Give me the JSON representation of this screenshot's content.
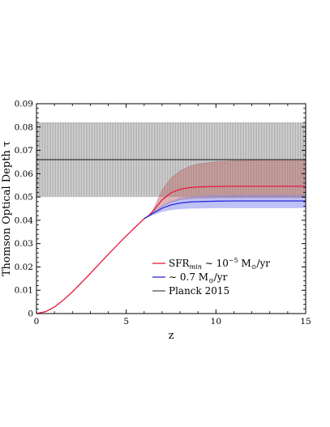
{
  "chart_data": {
    "type": "line",
    "xlabel": "z",
    "ylabel": "Thomson Optical Depth τ",
    "xlim": [
      0,
      15
    ],
    "ylim": [
      0,
      0.09
    ],
    "xticks": [
      "0",
      "5",
      "10",
      "15"
    ],
    "yticks": [
      "0",
      "0.01",
      "0.02",
      "0.03",
      "0.04",
      "0.05",
      "0.06",
      "0.07",
      "0.08",
      "0.09"
    ],
    "grid": false,
    "legend_position": "bottom-right",
    "series": [
      {
        "name": "SFR_min ~ 10^-5 M⊙/yr",
        "color": "#e8193c",
        "x": [
          0,
          0.5,
          1,
          1.5,
          2,
          2.5,
          3,
          3.5,
          4,
          4.5,
          5,
          5.5,
          6,
          6.25,
          6.5,
          7,
          7.5,
          8,
          8.5,
          9,
          10,
          11,
          12,
          13,
          14,
          15
        ],
        "y": [
          0,
          0.0008,
          0.0028,
          0.0058,
          0.0093,
          0.0132,
          0.0172,
          0.0213,
          0.0254,
          0.0294,
          0.0333,
          0.037,
          0.0407,
          0.042,
          0.044,
          0.0488,
          0.0518,
          0.0533,
          0.054,
          0.0543,
          0.0545,
          0.0546,
          0.0546,
          0.0546,
          0.0546,
          0.0546
        ],
        "band_upper": [
          0,
          0.0008,
          0.0028,
          0.0058,
          0.0093,
          0.0132,
          0.0172,
          0.0213,
          0.0254,
          0.0294,
          0.0333,
          0.037,
          0.0407,
          0.042,
          0.0445,
          0.053,
          0.0582,
          0.0612,
          0.063,
          0.0641,
          0.0651,
          0.0655,
          0.0657,
          0.0658,
          0.0658,
          0.0658
        ],
        "band_lower": [
          0,
          0.0008,
          0.0028,
          0.0058,
          0.0093,
          0.0132,
          0.0172,
          0.0213,
          0.0254,
          0.0294,
          0.0333,
          0.037,
          0.0407,
          0.0418,
          0.0432,
          0.046,
          0.0478,
          0.0488,
          0.0493,
          0.0495,
          0.0497,
          0.0497,
          0.0497,
          0.0497,
          0.0497,
          0.0497
        ],
        "band_color": "#b96b6b"
      },
      {
        "name": "~ 0.7 M⊙/yr",
        "color": "#2a2ad8",
        "x": [
          6,
          6.25,
          6.5,
          7,
          7.5,
          8,
          8.5,
          9,
          10,
          11,
          12,
          13,
          14,
          15
        ],
        "y": [
          0.0407,
          0.0418,
          0.043,
          0.0452,
          0.0466,
          0.0474,
          0.0478,
          0.048,
          0.0482,
          0.0483,
          0.0483,
          0.0483,
          0.0483,
          0.0483
        ],
        "band_upper": [
          0.0407,
          0.042,
          0.0436,
          0.0464,
          0.0483,
          0.0495,
          0.0501,
          0.0504,
          0.0507,
          0.0508,
          0.0508,
          0.0508,
          0.0508,
          0.0508
        ],
        "band_lower": [
          0.0407,
          0.0415,
          0.0423,
          0.0436,
          0.0444,
          0.0448,
          0.045,
          0.0451,
          0.0452,
          0.0452,
          0.0452,
          0.0452,
          0.0452,
          0.0452
        ],
        "band_color": "#7f86ee"
      },
      {
        "name": "Planck 2015",
        "color": "#555555",
        "x": [
          0,
          15
        ],
        "y": [
          0.066,
          0.066
        ],
        "band_upper": [
          0.082,
          0.082
        ],
        "band_lower": [
          0.05,
          0.05
        ],
        "band_color": "#9a9a9a"
      }
    ]
  },
  "legend": {
    "entries": [
      {
        "main": "SFR",
        "sub": "min",
        "tail": " ∼ 10",
        "sup": "−5",
        "unit": " M",
        "unit_sub": "⊙",
        "unit_tail": "/yr",
        "color": "#e8193c"
      },
      {
        "main": "∼ 0.7 M",
        "unit_sub": "⊙",
        "unit_tail": "/yr",
        "color": "#2a2ad8"
      },
      {
        "main": "Planck 2015",
        "color": "#555555"
      }
    ]
  }
}
